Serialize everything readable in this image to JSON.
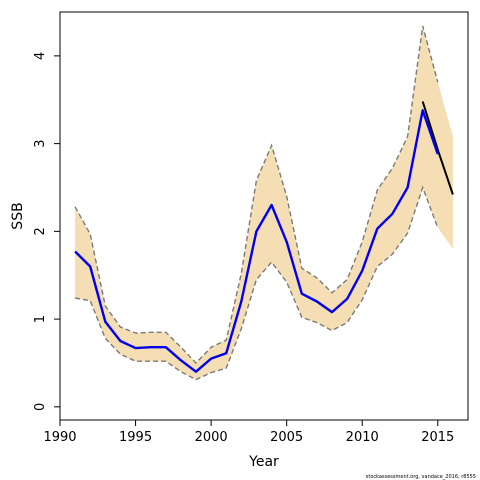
{
  "chart_data": {
    "type": "line",
    "xlabel": "Year",
    "ylabel": "SSB",
    "xlim": [
      1990,
      2017
    ],
    "ylim": [
      -0.15,
      4.5
    ],
    "xticks": [
      1990,
      1995,
      2000,
      2005,
      2010,
      2015
    ],
    "yticks": [
      0,
      1,
      2,
      3,
      4
    ],
    "grid": false,
    "legend": "none",
    "footnote": "stockassessment.org,  vandace_2016, r8555",
    "colors": {
      "band": "#f5deb3",
      "ci_line": "#7a7a7a",
      "estimate": "#0000ee",
      "forecast": "#000000"
    },
    "estimate": {
      "x": [
        1991,
        1992,
        1993,
        1994,
        1995,
        1996,
        1997,
        1998,
        1999,
        2000,
        2001,
        2002,
        2003,
        2004,
        2005,
        2006,
        2007,
        2008,
        2009,
        2010,
        2011,
        2012,
        2013,
        2014,
        2015
      ],
      "y": [
        1.77,
        1.6,
        0.97,
        0.75,
        0.67,
        0.68,
        0.68,
        0.53,
        0.4,
        0.55,
        0.61,
        1.2,
        2.0,
        2.3,
        1.88,
        1.29,
        1.2,
        1.08,
        1.23,
        1.55,
        2.03,
        2.2,
        2.5,
        3.38,
        2.88
      ]
    },
    "ci_upper": {
      "x": [
        1991,
        1992,
        1993,
        1994,
        1995,
        1996,
        1997,
        1998,
        1999,
        2000,
        2001,
        2002,
        2003,
        2004,
        2005,
        2006,
        2007,
        2008,
        2009,
        2010,
        2011,
        2012,
        2013,
        2014,
        2015
      ],
      "y": [
        2.28,
        1.97,
        1.15,
        0.91,
        0.84,
        0.85,
        0.85,
        0.68,
        0.5,
        0.68,
        0.76,
        1.52,
        2.58,
        2.98,
        2.4,
        1.58,
        1.47,
        1.3,
        1.45,
        1.88,
        2.47,
        2.72,
        3.08,
        4.34,
        3.7
      ]
    },
    "ci_lower": {
      "x": [
        1991,
        1992,
        1993,
        1994,
        1995,
        1996,
        1997,
        1998,
        1999,
        2000,
        2001,
        2002,
        2003,
        2004,
        2005,
        2006,
        2007,
        2008,
        2009,
        2010,
        2011,
        2012,
        2013,
        2014,
        2015
      ],
      "y": [
        1.24,
        1.21,
        0.78,
        0.6,
        0.52,
        0.52,
        0.52,
        0.4,
        0.31,
        0.39,
        0.44,
        0.89,
        1.45,
        1.65,
        1.42,
        1.02,
        0.96,
        0.87,
        0.96,
        1.22,
        1.6,
        1.74,
        1.98,
        2.5,
        2.04
      ]
    },
    "forecast": {
      "x": [
        2014,
        2015,
        2016
      ],
      "y": [
        3.48,
        2.93,
        2.42
      ],
      "band_upper": [
        4.34,
        3.7,
        3.08
      ],
      "band_lower": [
        2.5,
        2.04,
        1.8
      ]
    }
  }
}
